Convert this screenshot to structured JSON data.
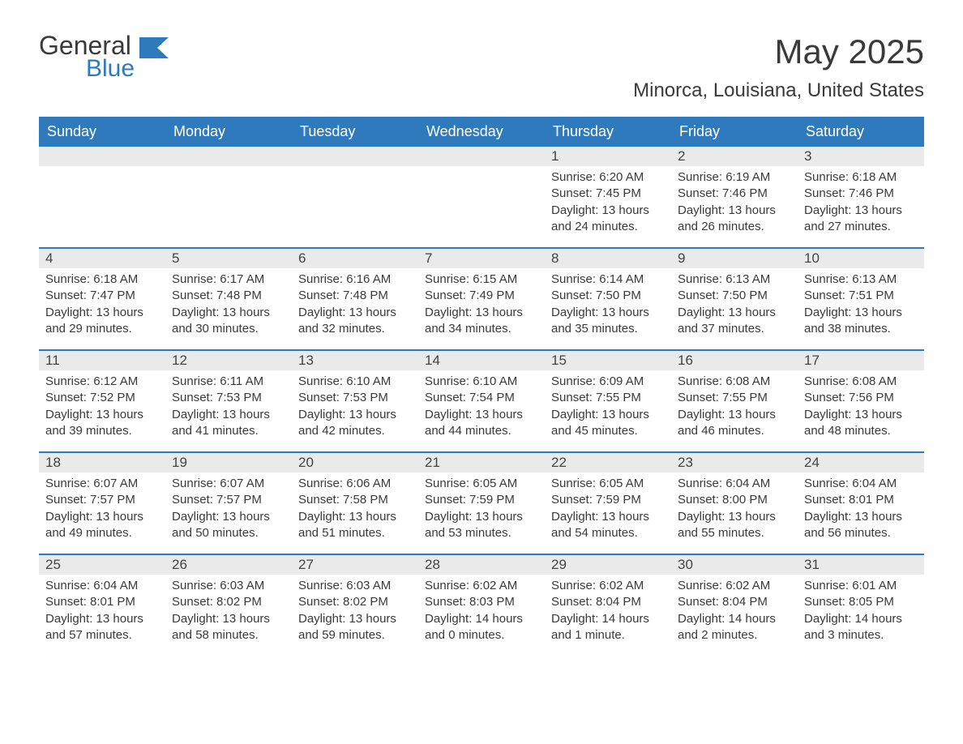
{
  "logo": {
    "word1": "General",
    "word2": "Blue"
  },
  "title": "May 2025",
  "location": "Minorca, Louisiana, United States",
  "colors": {
    "header_bg": "#2f79bd",
    "header_text": "#ffffff",
    "daynum_bg": "#eaeaea",
    "text": "#3a3a3a",
    "week_border": "#2f79bd",
    "page_bg": "#ffffff"
  },
  "dow": [
    "Sunday",
    "Monday",
    "Tuesday",
    "Wednesday",
    "Thursday",
    "Friday",
    "Saturday"
  ],
  "weeks": [
    [
      null,
      null,
      null,
      null,
      {
        "n": "1",
        "sunrise": "6:20 AM",
        "sunset": "7:45 PM",
        "daylight": "13 hours and 24 minutes."
      },
      {
        "n": "2",
        "sunrise": "6:19 AM",
        "sunset": "7:46 PM",
        "daylight": "13 hours and 26 minutes."
      },
      {
        "n": "3",
        "sunrise": "6:18 AM",
        "sunset": "7:46 PM",
        "daylight": "13 hours and 27 minutes."
      }
    ],
    [
      {
        "n": "4",
        "sunrise": "6:18 AM",
        "sunset": "7:47 PM",
        "daylight": "13 hours and 29 minutes."
      },
      {
        "n": "5",
        "sunrise": "6:17 AM",
        "sunset": "7:48 PM",
        "daylight": "13 hours and 30 minutes."
      },
      {
        "n": "6",
        "sunrise": "6:16 AM",
        "sunset": "7:48 PM",
        "daylight": "13 hours and 32 minutes."
      },
      {
        "n": "7",
        "sunrise": "6:15 AM",
        "sunset": "7:49 PM",
        "daylight": "13 hours and 34 minutes."
      },
      {
        "n": "8",
        "sunrise": "6:14 AM",
        "sunset": "7:50 PM",
        "daylight": "13 hours and 35 minutes."
      },
      {
        "n": "9",
        "sunrise": "6:13 AM",
        "sunset": "7:50 PM",
        "daylight": "13 hours and 37 minutes."
      },
      {
        "n": "10",
        "sunrise": "6:13 AM",
        "sunset": "7:51 PM",
        "daylight": "13 hours and 38 minutes."
      }
    ],
    [
      {
        "n": "11",
        "sunrise": "6:12 AM",
        "sunset": "7:52 PM",
        "daylight": "13 hours and 39 minutes."
      },
      {
        "n": "12",
        "sunrise": "6:11 AM",
        "sunset": "7:53 PM",
        "daylight": "13 hours and 41 minutes."
      },
      {
        "n": "13",
        "sunrise": "6:10 AM",
        "sunset": "7:53 PM",
        "daylight": "13 hours and 42 minutes."
      },
      {
        "n": "14",
        "sunrise": "6:10 AM",
        "sunset": "7:54 PM",
        "daylight": "13 hours and 44 minutes."
      },
      {
        "n": "15",
        "sunrise": "6:09 AM",
        "sunset": "7:55 PM",
        "daylight": "13 hours and 45 minutes."
      },
      {
        "n": "16",
        "sunrise": "6:08 AM",
        "sunset": "7:55 PM",
        "daylight": "13 hours and 46 minutes."
      },
      {
        "n": "17",
        "sunrise": "6:08 AM",
        "sunset": "7:56 PM",
        "daylight": "13 hours and 48 minutes."
      }
    ],
    [
      {
        "n": "18",
        "sunrise": "6:07 AM",
        "sunset": "7:57 PM",
        "daylight": "13 hours and 49 minutes."
      },
      {
        "n": "19",
        "sunrise": "6:07 AM",
        "sunset": "7:57 PM",
        "daylight": "13 hours and 50 minutes."
      },
      {
        "n": "20",
        "sunrise": "6:06 AM",
        "sunset": "7:58 PM",
        "daylight": "13 hours and 51 minutes."
      },
      {
        "n": "21",
        "sunrise": "6:05 AM",
        "sunset": "7:59 PM",
        "daylight": "13 hours and 53 minutes."
      },
      {
        "n": "22",
        "sunrise": "6:05 AM",
        "sunset": "7:59 PM",
        "daylight": "13 hours and 54 minutes."
      },
      {
        "n": "23",
        "sunrise": "6:04 AM",
        "sunset": "8:00 PM",
        "daylight": "13 hours and 55 minutes."
      },
      {
        "n": "24",
        "sunrise": "6:04 AM",
        "sunset": "8:01 PM",
        "daylight": "13 hours and 56 minutes."
      }
    ],
    [
      {
        "n": "25",
        "sunrise": "6:04 AM",
        "sunset": "8:01 PM",
        "daylight": "13 hours and 57 minutes."
      },
      {
        "n": "26",
        "sunrise": "6:03 AM",
        "sunset": "8:02 PM",
        "daylight": "13 hours and 58 minutes."
      },
      {
        "n": "27",
        "sunrise": "6:03 AM",
        "sunset": "8:02 PM",
        "daylight": "13 hours and 59 minutes."
      },
      {
        "n": "28",
        "sunrise": "6:02 AM",
        "sunset": "8:03 PM",
        "daylight": "14 hours and 0 minutes."
      },
      {
        "n": "29",
        "sunrise": "6:02 AM",
        "sunset": "8:04 PM",
        "daylight": "14 hours and 1 minute."
      },
      {
        "n": "30",
        "sunrise": "6:02 AM",
        "sunset": "8:04 PM",
        "daylight": "14 hours and 2 minutes."
      },
      {
        "n": "31",
        "sunrise": "6:01 AM",
        "sunset": "8:05 PM",
        "daylight": "14 hours and 3 minutes."
      }
    ]
  ],
  "labels": {
    "sunrise": "Sunrise:",
    "sunset": "Sunset:",
    "daylight": "Daylight:"
  }
}
